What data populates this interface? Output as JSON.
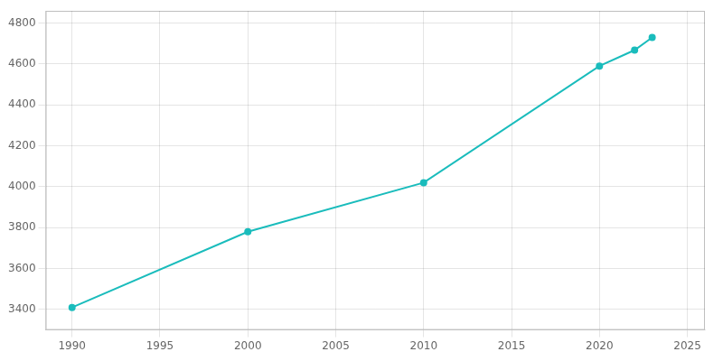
{
  "chart_data": {
    "type": "line",
    "x": [
      1990,
      2000,
      2010,
      2020,
      2022,
      2023
    ],
    "series": [
      {
        "values": [
          3410,
          3780,
          4020,
          4590,
          4668,
          4730
        ],
        "color": "#1abcbc",
        "marker": "circle"
      }
    ],
    "xlim": [
      1988.5,
      2026
    ],
    "ylim": [
      3300,
      4860
    ],
    "xticks": [
      1990,
      1995,
      2000,
      2005,
      2010,
      2015,
      2020,
      2025
    ],
    "yticks": [
      3400,
      3600,
      3800,
      4000,
      4200,
      4400,
      4600,
      4800
    ],
    "grid": true
  }
}
